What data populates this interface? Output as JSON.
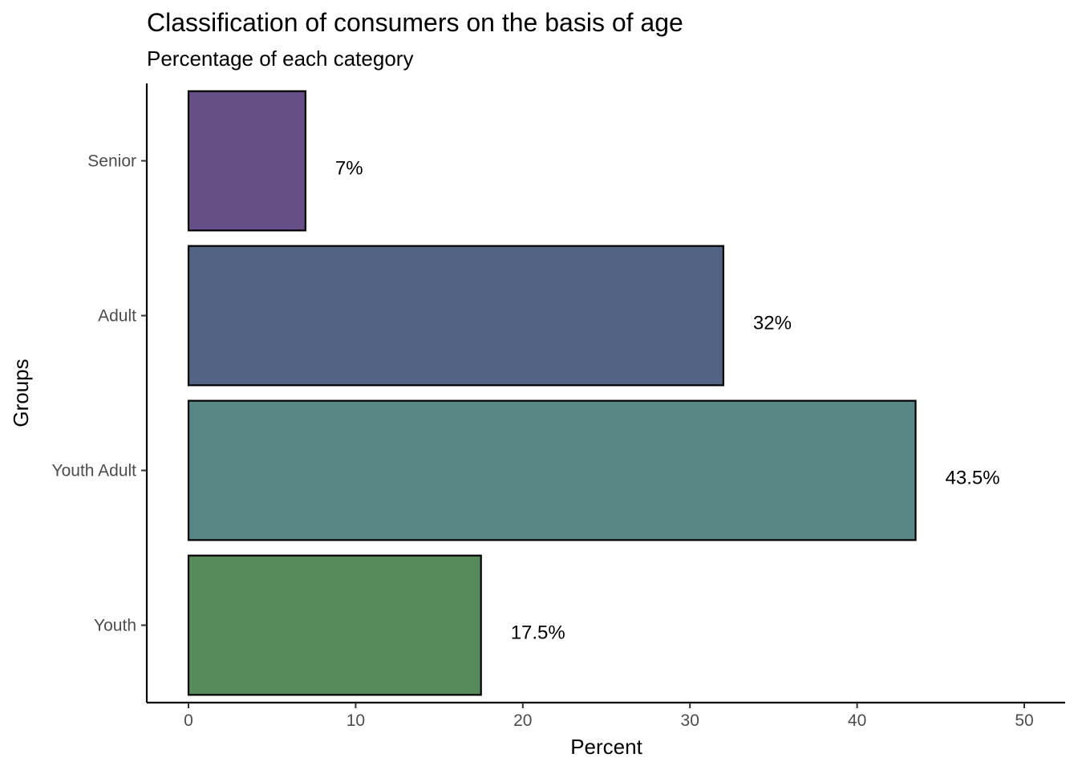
{
  "chart_data": {
    "type": "bar",
    "orientation": "horizontal",
    "title": "Classification of consumers on the basis of age",
    "subtitle": "Percentage of each category",
    "xlabel": "Percent",
    "ylabel": "Groups",
    "categories": [
      "Youth",
      "Youth Adult",
      "Adult",
      "Senior"
    ],
    "values": [
      17.5,
      43.5,
      32,
      7
    ],
    "data_labels": [
      "17.5%",
      "43.5%",
      "32%",
      "7%"
    ],
    "colors": [
      "#588b5c",
      "#588886",
      "#536384",
      "#664e86"
    ],
    "bar_outline": "#000000",
    "xlim": [
      0,
      50
    ],
    "xticks": [
      0,
      10,
      20,
      30,
      40,
      50
    ],
    "xtick_labels": [
      "0",
      "10",
      "20",
      "30",
      "40",
      "50"
    ],
    "grid": false,
    "legend": "none"
  }
}
